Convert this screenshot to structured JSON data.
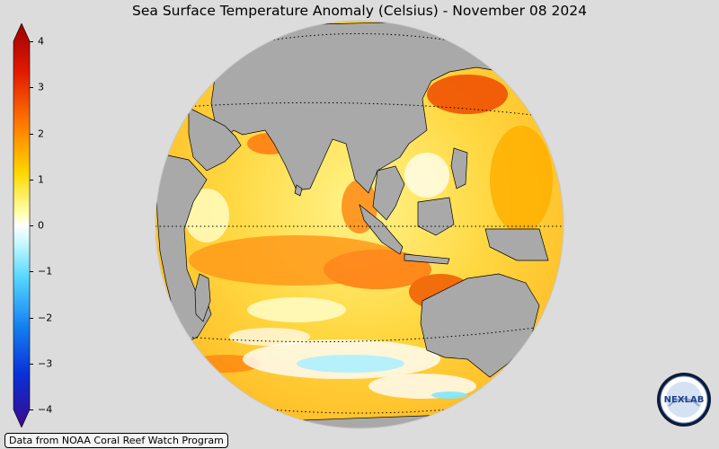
{
  "title": "Sea Surface Temperature Anomaly (Celsius) - November 08 2024",
  "colorbar": {
    "ticks": [
      {
        "value": 4,
        "label": "4"
      },
      {
        "value": 3,
        "label": "3"
      },
      {
        "value": 2,
        "label": "2"
      },
      {
        "value": 1,
        "label": "1"
      },
      {
        "value": 0,
        "label": "0"
      },
      {
        "value": -1,
        "label": "−1"
      },
      {
        "value": -2,
        "label": "−2"
      },
      {
        "value": -3,
        "label": "−3"
      },
      {
        "value": -4,
        "label": "−4"
      }
    ],
    "min": -4,
    "max": 4,
    "colors": [
      "#3b0a8c",
      "#0a2fd6",
      "#1a8cf0",
      "#7fe6ff",
      "#ffffff",
      "#ffff55",
      "#ffb300",
      "#f04a00",
      "#9c0000"
    ]
  },
  "credit": "Data from NOAA Coral Reef Watch Program",
  "logo": {
    "text": "NEXLAB",
    "icon": "nexlab-logo-icon"
  },
  "map": {
    "projection": "orthographic",
    "region": "Indian Ocean"
  }
}
